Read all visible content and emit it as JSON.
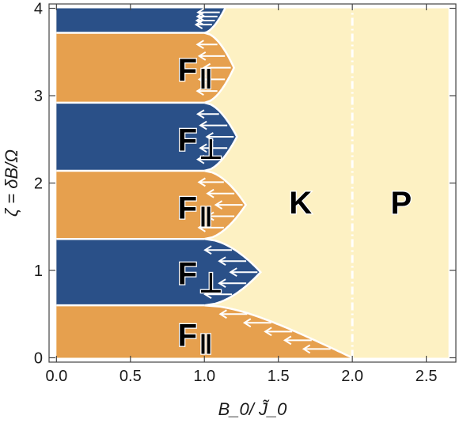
{
  "colors": {
    "parallel": "#E6A04E",
    "perpendicular": "#2A5088",
    "k_region": "#FDF1C3",
    "boundary": "#ffffff",
    "axes": "#444444"
  },
  "chart_data": {
    "type": "area",
    "title": "",
    "xlabel": "B_0/ J̃_0",
    "ylabel": "ζ = δB/Ω",
    "xlim": [
      -0.05,
      2.7
    ],
    "ylim": [
      -0.05,
      4.05
    ],
    "x_ticks": [
      "0.0",
      "0.5",
      "1.0",
      "1.5",
      "2.0",
      "2.5"
    ],
    "y_ticks": [
      "0",
      "1",
      "2",
      "3",
      "4"
    ],
    "x_tick_values": [
      0,
      0.5,
      1.0,
      1.5,
      2.0,
      2.5
    ],
    "y_tick_values": [
      0,
      1,
      2,
      3,
      4
    ],
    "data_extent": {
      "x": [
        0,
        2.65
      ],
      "y": [
        0,
        4
      ]
    },
    "phase_boundary_x": 2.0,
    "bands": [
      {
        "phase": "parallel",
        "label": "F",
        "sub": "‖",
        "ylo": 0.0,
        "yhi": 0.6,
        "peak_y": 0.0,
        "peak_x": 2.0,
        "label_at": [
          0.82,
          0.26
        ]
      },
      {
        "phase": "perpendicular",
        "label": "F",
        "sub": "⊥",
        "ylo": 0.6,
        "yhi": 1.36,
        "peak_y": 0.98,
        "peak_x": 1.38,
        "label_at": [
          0.82,
          0.97
        ]
      },
      {
        "phase": "parallel",
        "label": "F",
        "sub": "‖",
        "ylo": 1.36,
        "yhi": 2.14,
        "peak_y": 1.75,
        "peak_x": 1.28,
        "label_at": [
          0.82,
          1.72
        ]
      },
      {
        "phase": "perpendicular",
        "label": "F",
        "sub": "⊥",
        "ylo": 2.14,
        "yhi": 2.92,
        "peak_y": 2.53,
        "peak_x": 1.22,
        "label_at": [
          0.82,
          2.5
        ]
      },
      {
        "phase": "parallel",
        "label": "F",
        "sub": "‖",
        "ylo": 2.92,
        "yhi": 3.72,
        "peak_y": 3.32,
        "peak_x": 1.2,
        "label_at": [
          0.82,
          3.3
        ]
      },
      {
        "phase": "perpendicular",
        "label": "",
        "sub": "",
        "ylo": 3.72,
        "yhi": 4.0,
        "peak_y": 4.0,
        "peak_x": 1.14,
        "label_at": null
      }
    ],
    "region_labels": [
      {
        "text": "K",
        "at": [
          1.65,
          1.78
        ]
      },
      {
        "text": "P",
        "at": [
          2.33,
          1.78
        ]
      }
    ]
  }
}
